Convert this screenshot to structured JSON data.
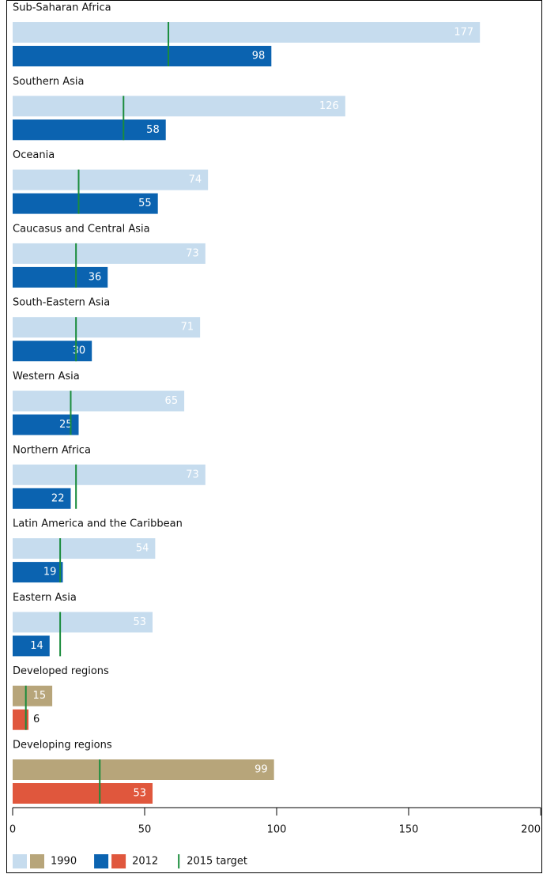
{
  "chart_data": {
    "type": "bar",
    "orientation": "horizontal",
    "categories": [
      "Sub-Saharan Africa",
      "Southern Asia",
      "Oceania",
      "Caucasus and Central Asia",
      "South-Eastern Asia",
      "Western Asia",
      "Northern Africa",
      "Latin America and the Caribbean",
      "Eastern Asia",
      "Developed regions",
      "Developing regions"
    ],
    "series": [
      {
        "name": "1990",
        "colors": [
          "#c6dcee",
          "#c6dcee",
          "#c6dcee",
          "#c6dcee",
          "#c6dcee",
          "#c6dcee",
          "#c6dcee",
          "#c6dcee",
          "#c6dcee",
          "#b7a57a",
          "#b7a57a"
        ],
        "values": [
          177,
          126,
          74,
          73,
          71,
          65,
          73,
          54,
          53,
          15,
          99
        ]
      },
      {
        "name": "2012",
        "colors": [
          "#0b63b0",
          "#0b63b0",
          "#0b63b0",
          "#0b63b0",
          "#0b63b0",
          "#0b63b0",
          "#0b63b0",
          "#0b63b0",
          "#0b63b0",
          "#e0573d",
          "#e0573d"
        ],
        "values": [
          98,
          58,
          55,
          36,
          30,
          25,
          22,
          19,
          14,
          6,
          53
        ]
      },
      {
        "name": "2015 target",
        "color": "#1a8c3c",
        "marker": "line",
        "values": [
          59,
          42,
          25,
          24,
          24,
          22,
          24,
          18,
          18,
          5,
          33
        ]
      }
    ],
    "xlim": [
      0,
      200
    ],
    "xticks": [
      0,
      50,
      100,
      150,
      200
    ]
  }
}
